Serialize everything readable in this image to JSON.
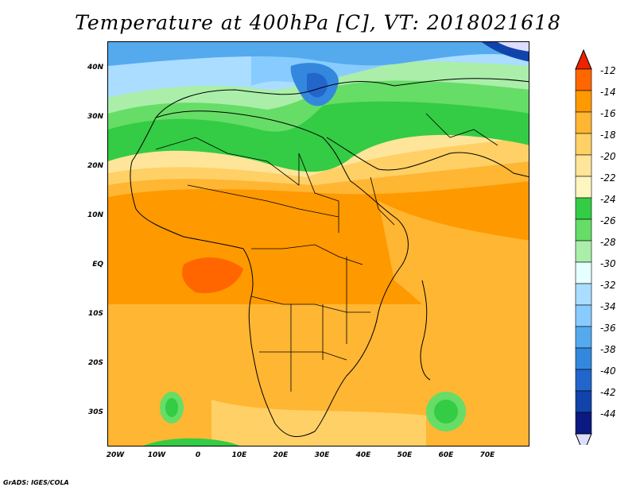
{
  "title": "Temperature at 400hPa [C], VT: 2018021618",
  "footer": "GrADS: IGES/COLA",
  "lat_labels": [
    "40N",
    "30N",
    "20N",
    "10N",
    "EQ",
    "10S",
    "20S",
    "30S"
  ],
  "lon_labels": [
    "20W",
    "10W",
    "0",
    "10E",
    "20E",
    "30E",
    "40E",
    "50E",
    "60E",
    "70E"
  ],
  "colorbar": {
    "labels": [
      "-12",
      "-14",
      "-16",
      "-18",
      "-20",
      "-22",
      "-24",
      "-26",
      "-28",
      "-30",
      "-32",
      "-34",
      "-36",
      "-38",
      "-40",
      "-42",
      "-44"
    ],
    "colors": [
      "#ee2200",
      "#ff6600",
      "#ff9900",
      "#ffb633",
      "#ffd066",
      "#ffe599",
      "#fff5c0",
      "#33cc44",
      "#66dd66",
      "#aaeeaa",
      "#e6ffff",
      "#aaddff",
      "#88ccff",
      "#55aaee",
      "#3388dd",
      "#2266cc",
      "#1144aa",
      "#0a1a80",
      "#ddddff"
    ]
  }
}
